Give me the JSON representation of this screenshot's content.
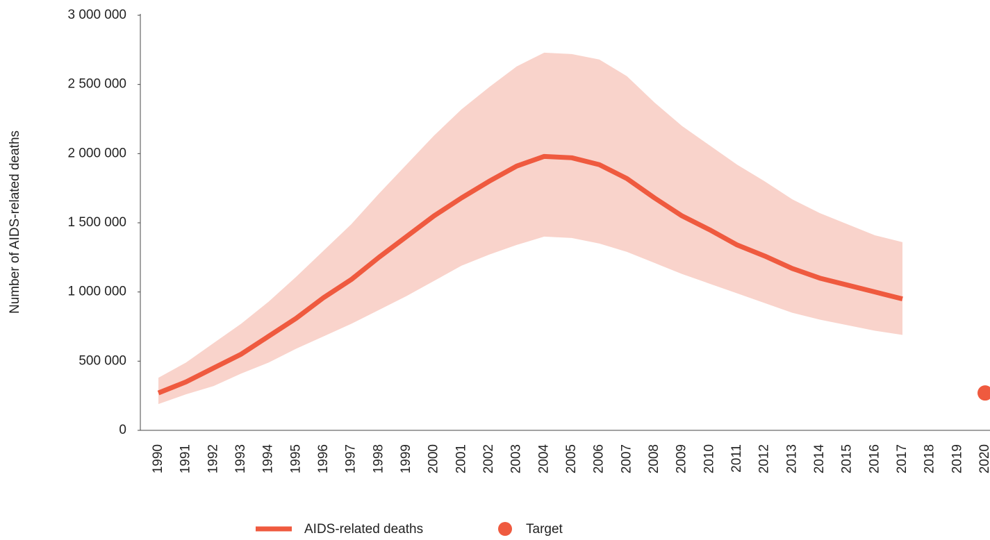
{
  "chart_data": {
    "type": "line",
    "y_label": "Number of AIDS-related deaths",
    "categories": [
      "1990",
      "1991",
      "1992",
      "1993",
      "1994",
      "1995",
      "1996",
      "1997",
      "1998",
      "1999",
      "2000",
      "2001",
      "2002",
      "2003",
      "2004",
      "2005",
      "2006",
      "2007",
      "2008",
      "2009",
      "2010",
      "2011",
      "2012",
      "2013",
      "2014",
      "2015",
      "2016",
      "2017",
      "2018",
      "2019",
      "2020"
    ],
    "series": [
      {
        "name": "AIDS-related deaths",
        "color": "#ef5a3f",
        "band_color": "#f9d3cb",
        "values": [
          270000,
          350000,
          450000,
          550000,
          680000,
          810000,
          960000,
          1090000,
          1250000,
          1400000,
          1550000,
          1680000,
          1800000,
          1910000,
          1980000,
          1970000,
          1920000,
          1820000,
          1680000,
          1550000,
          1450000,
          1340000,
          1260000,
          1170000,
          1100000,
          1050000,
          1000000,
          950000,
          null,
          null,
          null
        ],
        "upper": [
          380000,
          490000,
          630000,
          770000,
          930000,
          1110000,
          1300000,
          1490000,
          1710000,
          1920000,
          2130000,
          2320000,
          2480000,
          2630000,
          2730000,
          2720000,
          2680000,
          2560000,
          2370000,
          2200000,
          2060000,
          1920000,
          1800000,
          1670000,
          1570000,
          1490000,
          1410000,
          1360000,
          null,
          null,
          null
        ],
        "lower": [
          190000,
          260000,
          320000,
          410000,
          490000,
          590000,
          680000,
          770000,
          870000,
          970000,
          1080000,
          1190000,
          1270000,
          1340000,
          1400000,
          1390000,
          1350000,
          1290000,
          1210000,
          1130000,
          1060000,
          990000,
          920000,
          850000,
          800000,
          760000,
          720000,
          690000,
          null,
          null,
          null
        ]
      },
      {
        "name": "Target",
        "color": "#ef5a3f",
        "marker": "circle",
        "values": [
          null,
          null,
          null,
          null,
          null,
          null,
          null,
          null,
          null,
          null,
          null,
          null,
          null,
          null,
          null,
          null,
          null,
          null,
          null,
          null,
          null,
          null,
          null,
          null,
          null,
          null,
          null,
          null,
          null,
          null,
          270000
        ]
      }
    ],
    "ylim": [
      0,
      3000000
    ],
    "yticks": [
      0,
      {
        "value": 500000,
        "label": "500 000"
      },
      {
        "value": 1000000,
        "label": "1 000 000"
      },
      {
        "value": 1500000,
        "label": "1 500 000"
      },
      {
        "value": 2000000,
        "label": "2 000 000"
      },
      {
        "value": 2500000,
        "label": "2 500 000"
      },
      {
        "value": 3000000,
        "label": "3 000 000"
      }
    ],
    "grid": false,
    "legend": "bottom"
  }
}
